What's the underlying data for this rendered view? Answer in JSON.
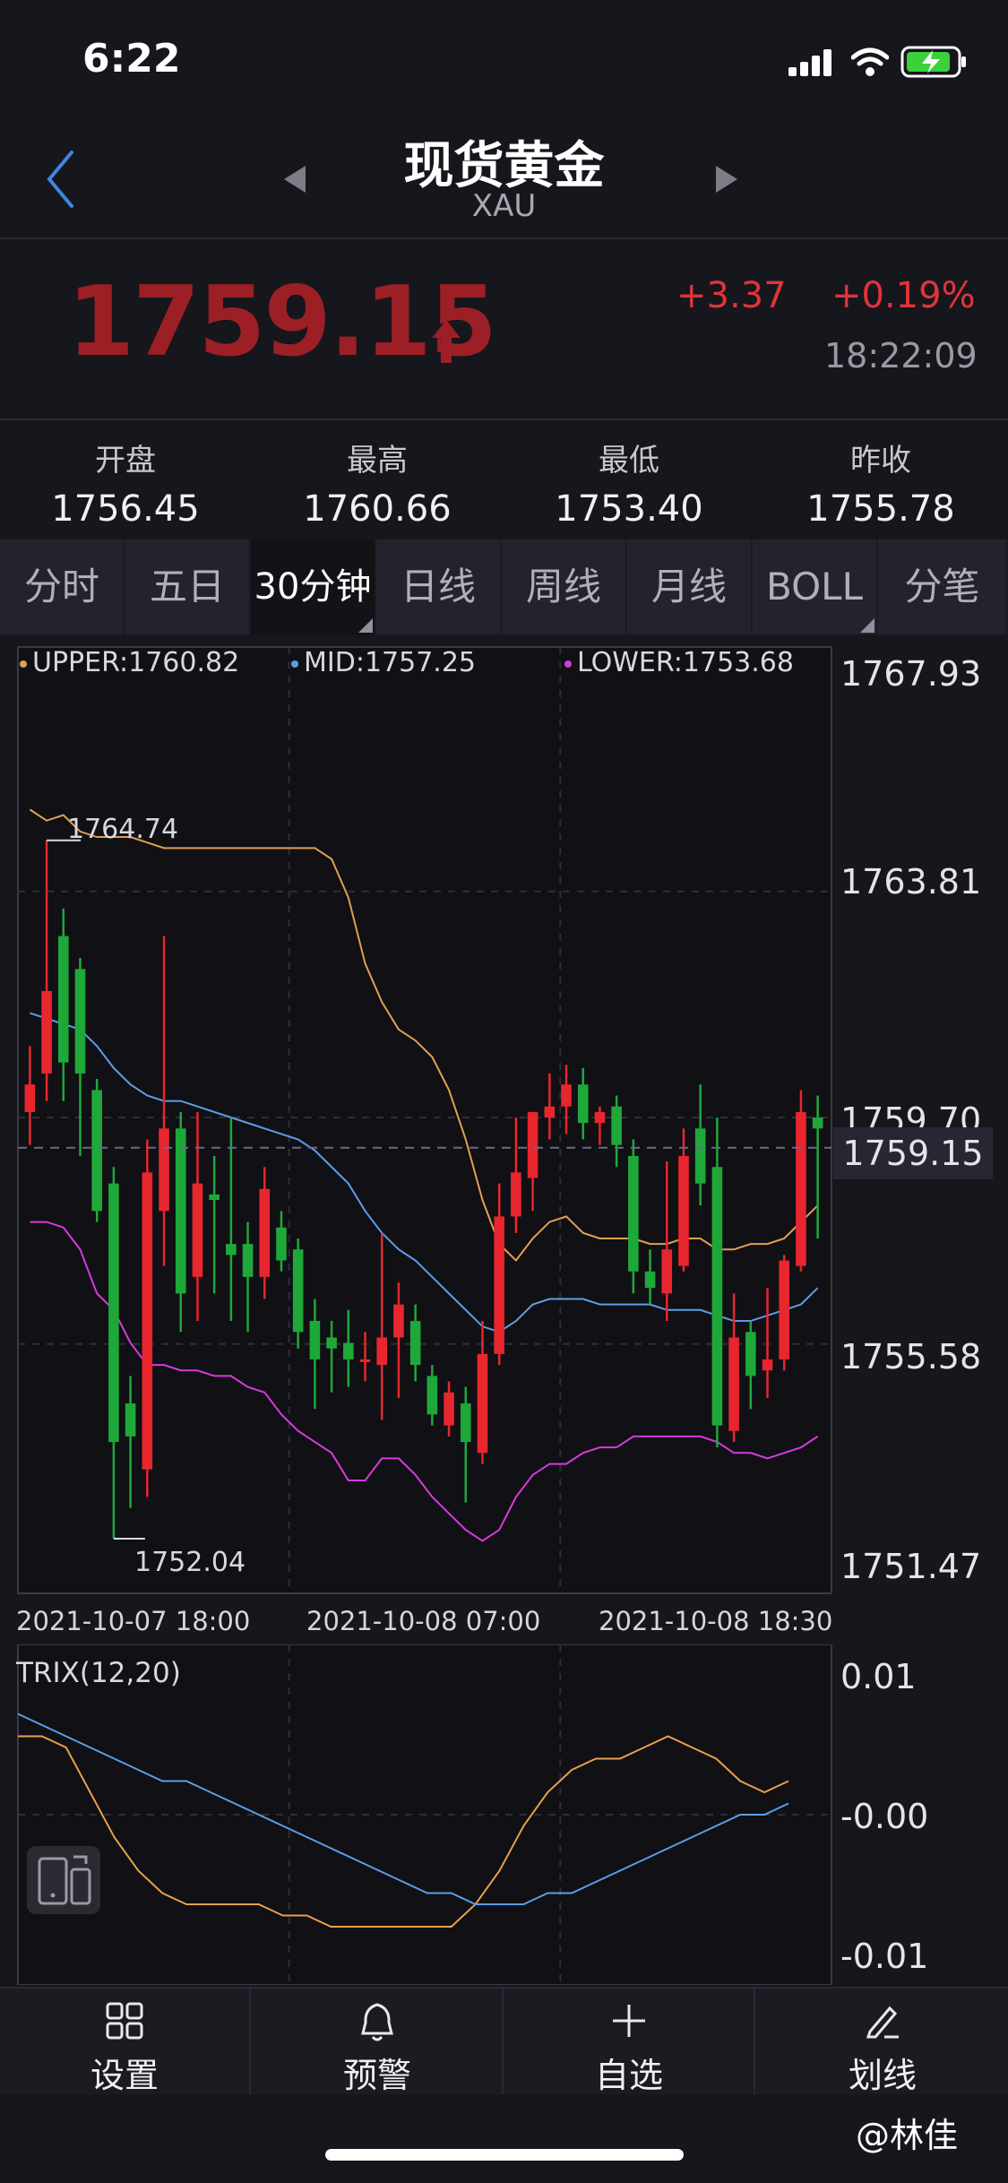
{
  "status": {
    "time": "6:22"
  },
  "header": {
    "title": "现货黄金",
    "subtitle": "XAU"
  },
  "quote": {
    "price": "1759.15",
    "change": "+3.37",
    "change_pct": "+0.19%",
    "time": "18:22:09",
    "up_color": "#e0343a",
    "price_color": "#9b1f24"
  },
  "stats": [
    {
      "label": "开盘",
      "value": "1756.45"
    },
    {
      "label": "最高",
      "value": "1760.66"
    },
    {
      "label": "最低",
      "value": "1753.40"
    },
    {
      "label": "昨收",
      "value": "1755.78"
    }
  ],
  "tabs": [
    "分时",
    "五日",
    "30分钟",
    "日线",
    "周线",
    "月线",
    "BOLL",
    "分笔"
  ],
  "active_tab": 2,
  "main_chart": {
    "legend": {
      "upper": "UPPER:1760.82",
      "mid": "MID:1757.25",
      "lower": "LOWER:1753.68"
    },
    "y_ticks": [
      "1767.93",
      "1763.81",
      "1759.70",
      "1755.58",
      "1751.47"
    ],
    "current_price_tag": "1759.15",
    "high_marker": "1764.74",
    "low_marker": "1752.04",
    "x_labels": [
      "2021-10-07 18:00",
      "2021-10-08 07:00",
      "2021-10-08 18:30"
    ]
  },
  "chart_data": [
    {
      "type": "candlestick",
      "title": "",
      "ylim": [
        1751.47,
        1767.93
      ],
      "x_labels": [
        "2021-10-07 18:00",
        "2021-10-08 07:00",
        "2021-10-08 18:30"
      ],
      "series_colors": {
        "up": "#e8262e",
        "down": "#1fa83a",
        "upper": "#e0a050",
        "mid": "#5b9ee8",
        "lower": "#d83adc"
      },
      "candles": [
        {
          "o": 1759.8,
          "h": 1761.0,
          "l": 1759.2,
          "c": 1760.3
        },
        {
          "o": 1760.5,
          "h": 1764.74,
          "l": 1760.0,
          "c": 1762.0
        },
        {
          "o": 1763.0,
          "h": 1763.5,
          "l": 1760.0,
          "c": 1760.7
        },
        {
          "o": 1762.4,
          "h": 1762.6,
          "l": 1759.0,
          "c": 1760.5
        },
        {
          "o": 1760.2,
          "h": 1760.4,
          "l": 1757.8,
          "c": 1758.0
        },
        {
          "o": 1758.5,
          "h": 1758.8,
          "l": 1752.04,
          "c": 1753.8
        },
        {
          "o": 1754.5,
          "h": 1755.0,
          "l": 1752.6,
          "c": 1753.9
        },
        {
          "o": 1753.3,
          "h": 1759.3,
          "l": 1752.8,
          "c": 1758.7
        },
        {
          "o": 1758.0,
          "h": 1763.0,
          "l": 1757.0,
          "c": 1759.5
        },
        {
          "o": 1759.5,
          "h": 1759.8,
          "l": 1755.8,
          "c": 1756.5
        },
        {
          "o": 1756.8,
          "h": 1759.8,
          "l": 1756.0,
          "c": 1758.5
        },
        {
          "o": 1758.3,
          "h": 1759.0,
          "l": 1756.5,
          "c": 1758.2
        },
        {
          "o": 1757.4,
          "h": 1759.7,
          "l": 1756.0,
          "c": 1757.2
        },
        {
          "o": 1757.4,
          "h": 1757.8,
          "l": 1755.8,
          "c": 1756.8
        },
        {
          "o": 1756.8,
          "h": 1758.8,
          "l": 1756.4,
          "c": 1758.4
        },
        {
          "o": 1757.7,
          "h": 1758.0,
          "l": 1756.9,
          "c": 1757.1
        },
        {
          "o": 1757.3,
          "h": 1757.5,
          "l": 1755.5,
          "c": 1755.8
        },
        {
          "o": 1756.0,
          "h": 1756.4,
          "l": 1754.4,
          "c": 1755.3
        },
        {
          "o": 1755.7,
          "h": 1756.0,
          "l": 1754.7,
          "c": 1755.5
        },
        {
          "o": 1755.6,
          "h": 1756.2,
          "l": 1754.8,
          "c": 1755.3
        },
        {
          "o": 1755.3,
          "h": 1755.8,
          "l": 1754.9,
          "c": 1755.3
        },
        {
          "o": 1755.2,
          "h": 1757.6,
          "l": 1754.2,
          "c": 1755.7
        },
        {
          "o": 1755.7,
          "h": 1756.7,
          "l": 1754.6,
          "c": 1756.3
        },
        {
          "o": 1756.0,
          "h": 1756.3,
          "l": 1754.9,
          "c": 1755.2
        },
        {
          "o": 1755.0,
          "h": 1755.2,
          "l": 1754.1,
          "c": 1754.3
        },
        {
          "o": 1754.1,
          "h": 1754.9,
          "l": 1753.9,
          "c": 1754.7
        },
        {
          "o": 1754.5,
          "h": 1754.8,
          "l": 1752.7,
          "c": 1753.8
        },
        {
          "o": 1753.6,
          "h": 1756.0,
          "l": 1753.4,
          "c": 1755.4
        },
        {
          "o": 1755.4,
          "h": 1758.5,
          "l": 1755.2,
          "c": 1757.9
        },
        {
          "o": 1757.9,
          "h": 1759.7,
          "l": 1757.6,
          "c": 1758.7
        },
        {
          "o": 1758.6,
          "h": 1759.8,
          "l": 1758.0,
          "c": 1759.8
        },
        {
          "o": 1759.7,
          "h": 1760.5,
          "l": 1759.3,
          "c": 1759.9
        },
        {
          "o": 1759.9,
          "h": 1760.66,
          "l": 1759.4,
          "c": 1760.3
        },
        {
          "o": 1760.3,
          "h": 1760.6,
          "l": 1759.3,
          "c": 1759.6
        },
        {
          "o": 1759.6,
          "h": 1759.9,
          "l": 1759.2,
          "c": 1759.8
        },
        {
          "o": 1759.9,
          "h": 1760.1,
          "l": 1758.8,
          "c": 1759.2
        },
        {
          "o": 1759.0,
          "h": 1759.3,
          "l": 1756.5,
          "c": 1756.9
        },
        {
          "o": 1756.9,
          "h": 1757.3,
          "l": 1756.3,
          "c": 1756.6
        },
        {
          "o": 1756.5,
          "h": 1758.9,
          "l": 1756.0,
          "c": 1757.3
        },
        {
          "o": 1757.0,
          "h": 1759.5,
          "l": 1756.9,
          "c": 1759.0
        },
        {
          "o": 1759.5,
          "h": 1760.3,
          "l": 1758.1,
          "c": 1758.5
        },
        {
          "o": 1758.8,
          "h": 1759.7,
          "l": 1753.7,
          "c": 1754.1
        },
        {
          "o": 1754.0,
          "h": 1756.5,
          "l": 1753.8,
          "c": 1755.7
        },
        {
          "o": 1755.8,
          "h": 1756.0,
          "l": 1754.4,
          "c": 1755.0
        },
        {
          "o": 1755.1,
          "h": 1756.6,
          "l": 1754.6,
          "c": 1755.3
        },
        {
          "o": 1755.3,
          "h": 1757.2,
          "l": 1755.1,
          "c": 1757.1
        },
        {
          "o": 1757.0,
          "h": 1760.2,
          "l": 1756.9,
          "c": 1759.8
        },
        {
          "o": 1759.7,
          "h": 1760.1,
          "l": 1757.5,
          "c": 1759.5
        }
      ],
      "upper": [
        1765.3,
        1765.1,
        1765.2,
        1764.9,
        1764.8,
        1764.8,
        1764.8,
        1764.7,
        1764.6,
        1764.6,
        1764.6,
        1764.6,
        1764.6,
        1764.6,
        1764.6,
        1764.6,
        1764.6,
        1764.6,
        1764.4,
        1763.7,
        1762.5,
        1761.8,
        1761.3,
        1761.1,
        1760.8,
        1760.2,
        1759.3,
        1758.2,
        1757.4,
        1757.1,
        1757.5,
        1757.8,
        1757.9,
        1757.6,
        1757.5,
        1757.5,
        1757.5,
        1757.4,
        1757.4,
        1757.5,
        1757.5,
        1757.3,
        1757.3,
        1757.4,
        1757.4,
        1757.5,
        1757.8,
        1758.1
      ],
      "mid": [
        1761.6,
        1761.5,
        1761.4,
        1761.3,
        1761.0,
        1760.6,
        1760.3,
        1760.1,
        1760.0,
        1760.0,
        1759.9,
        1759.8,
        1759.7,
        1759.6,
        1759.5,
        1759.4,
        1759.3,
        1759.1,
        1758.8,
        1758.5,
        1758.0,
        1757.6,
        1757.3,
        1757.1,
        1756.8,
        1756.5,
        1756.2,
        1755.9,
        1755.8,
        1756.0,
        1756.3,
        1756.4,
        1756.4,
        1756.4,
        1756.3,
        1756.3,
        1756.3,
        1756.3,
        1756.2,
        1756.2,
        1756.2,
        1756.1,
        1756.0,
        1756.0,
        1756.1,
        1756.2,
        1756.3,
        1756.6
      ],
      "lower": [
        1757.8,
        1757.8,
        1757.7,
        1757.3,
        1756.5,
        1756.2,
        1755.6,
        1755.2,
        1755.2,
        1755.1,
        1755.1,
        1755.0,
        1755.0,
        1754.8,
        1754.7,
        1754.3,
        1754.0,
        1753.8,
        1753.6,
        1753.1,
        1753.1,
        1753.5,
        1753.5,
        1753.2,
        1752.8,
        1752.5,
        1752.2,
        1752.0,
        1752.2,
        1752.8,
        1753.2,
        1753.4,
        1753.4,
        1753.6,
        1753.7,
        1753.7,
        1753.9,
        1753.9,
        1753.9,
        1753.9,
        1753.9,
        1753.8,
        1753.6,
        1753.6,
        1753.5,
        1753.6,
        1753.7,
        1753.9
      ]
    },
    {
      "type": "line",
      "title": "TRIX(12,20)",
      "ylim": [
        -0.012,
        0.012
      ],
      "y_ticks": [
        "0.01",
        "-0.00",
        "-0.01"
      ],
      "series": [
        {
          "color": "#e8a04a",
          "values": [
            0.007,
            0.007,
            0.006,
            0.002,
            -0.002,
            -0.005,
            -0.007,
            -0.008,
            -0.008,
            -0.008,
            -0.008,
            -0.009,
            -0.009,
            -0.01,
            -0.01,
            -0.01,
            -0.01,
            -0.01,
            -0.01,
            -0.008,
            -0.005,
            -0.001,
            0.002,
            0.004,
            0.005,
            0.005,
            0.006,
            0.007,
            0.006,
            0.005,
            0.003,
            0.002,
            0.003
          ]
        },
        {
          "color": "#5b9ee8",
          "values": [
            0.009,
            0.008,
            0.007,
            0.006,
            0.005,
            0.004,
            0.003,
            0.003,
            0.002,
            0.001,
            0.0,
            -0.001,
            -0.002,
            -0.003,
            -0.004,
            -0.005,
            -0.006,
            -0.007,
            -0.007,
            -0.008,
            -0.008,
            -0.008,
            -0.007,
            -0.007,
            -0.006,
            -0.005,
            -0.004,
            -0.003,
            -0.002,
            -0.001,
            0.0,
            0.0,
            0.001
          ]
        }
      ]
    }
  ],
  "trix": {
    "label": "TRIX(12,20)",
    "y_ticks": [
      "0.01",
      "-0.00",
      "-0.01"
    ]
  },
  "toolbar": [
    {
      "label": "设置",
      "icon": "grid-icon"
    },
    {
      "label": "预警",
      "icon": "bell-icon"
    },
    {
      "label": "自选",
      "icon": "plus-icon"
    },
    {
      "label": "划线",
      "icon": "pen-icon"
    }
  ],
  "watermark": "@林佳"
}
